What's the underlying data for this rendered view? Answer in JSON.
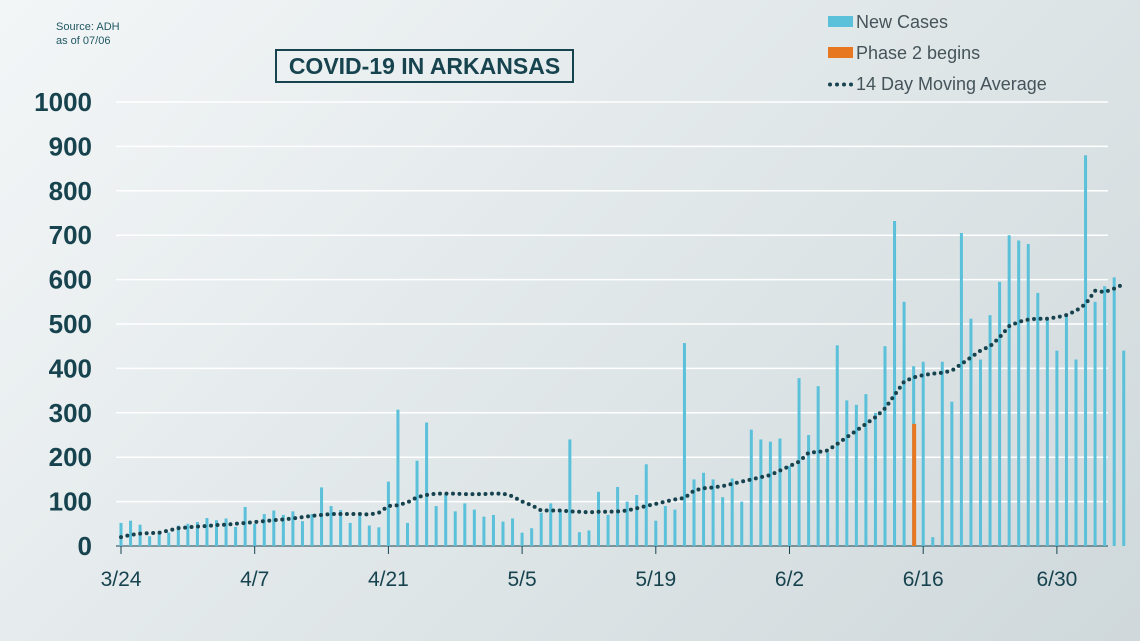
{
  "source": {
    "line1": "Source: ADH",
    "line2": "as of 07/06"
  },
  "chart_data": {
    "type": "bar",
    "title": "COVID-19 IN ARKANSAS",
    "xlabel": "",
    "ylabel": "",
    "ylim": [
      0,
      1000
    ],
    "yticks": [
      0,
      100,
      200,
      300,
      400,
      500,
      600,
      700,
      800,
      900,
      1000
    ],
    "grid": true,
    "legend_position": "top-right",
    "x_tick_labels": [
      {
        "label": "3/24",
        "date": "2020-03-24"
      },
      {
        "label": "4/7",
        "date": "2020-04-07"
      },
      {
        "label": "4/21",
        "date": "2020-04-21"
      },
      {
        "label": "5/5",
        "date": "2020-05-05"
      },
      {
        "label": "5/19",
        "date": "2020-05-19"
      },
      {
        "label": "6/2",
        "date": "2020-06-02"
      },
      {
        "label": "6/16",
        "date": "2020-06-16"
      },
      {
        "label": "6/30",
        "date": "2020-06-30"
      }
    ],
    "x_start_date": "2020-03-24",
    "x_end_date": "2020-07-05",
    "series": [
      {
        "name": "New Cases",
        "kind": "bar",
        "color": "#5bc0d9",
        "values": [
          52,
          57,
          48,
          22,
          33,
          30,
          46,
          50,
          54,
          63,
          58,
          62,
          43,
          88,
          50,
          72,
          80,
          70,
          78,
          56,
          72,
          132,
          90,
          81,
          52,
          70,
          46,
          42,
          145,
          307,
          52,
          192,
          278,
          90,
          117,
          78,
          96,
          82,
          66,
          70,
          55,
          62,
          30,
          40,
          75,
          96,
          82,
          240,
          31,
          35,
          122,
          70,
          133,
          100,
          115,
          184,
          57,
          90,
          82,
          457,
          150,
          165,
          150,
          110,
          152,
          100,
          262,
          240,
          235,
          242,
          180,
          378,
          250,
          360,
          210,
          452,
          328,
          318,
          342,
          300,
          450,
          732,
          550,
          405,
          415,
          20,
          415,
          325,
          705,
          512,
          420,
          520,
          595,
          700,
          688,
          680,
          570,
          510,
          440,
          520,
          420,
          880,
          550,
          585,
          605,
          440
        ]
      },
      {
        "name": "Phase 2 begins",
        "kind": "bar",
        "color": "#e87722",
        "date": "2020-06-15",
        "value": 275
      },
      {
        "name": "14 Day Moving Average",
        "kind": "line",
        "color": "#17434f",
        "values": [
          20,
          25,
          28,
          29,
          30,
          35,
          40,
          42,
          44,
          45,
          47,
          48,
          50,
          52,
          54,
          56,
          58,
          60,
          62,
          65,
          68,
          70,
          72,
          72,
          72,
          72,
          71,
          75,
          90,
          92,
          98,
          110,
          115,
          118,
          118,
          118,
          117,
          117,
          117,
          118,
          118,
          112,
          100,
          92,
          80,
          80,
          80,
          78,
          77,
          76,
          77,
          77,
          78,
          80,
          85,
          90,
          95,
          100,
          105,
          108,
          125,
          130,
          132,
          135,
          140,
          145,
          150,
          155,
          160,
          170,
          180,
          190,
          210,
          212,
          215,
          230,
          245,
          260,
          275,
          290,
          310,
          340,
          370,
          380,
          385,
          388,
          390,
          395,
          410,
          425,
          440,
          450,
          470,
          495,
          505,
          510,
          512,
          512,
          515,
          520,
          530,
          545,
          575,
          572,
          580,
          590
        ]
      }
    ]
  }
}
